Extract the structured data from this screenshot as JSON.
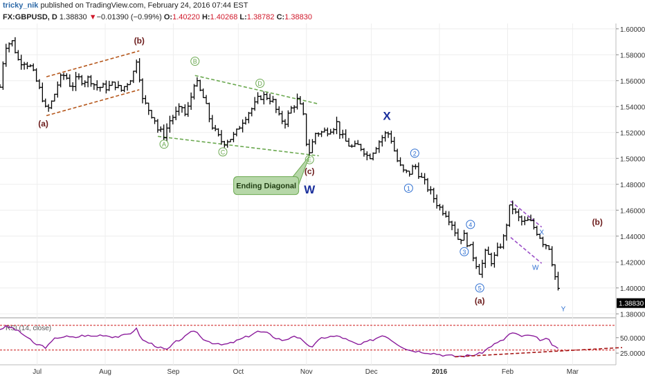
{
  "header": {
    "author": "tricky_nik",
    "published": "published on TradingView.com, February 24, 2016 07:44 EST",
    "symbol": "FX:GBPUSD, D",
    "price": "1.38830",
    "change_arrow": "▼",
    "change": "−0.01390 (−0.99%)",
    "open_label": "O:",
    "open": "1.40220",
    "high_label": "H:",
    "high": "1.40268",
    "low_label": "L:",
    "low": "1.38782",
    "close_label": "C:",
    "close": "1.38830"
  },
  "chart_data": {
    "type": "ohlc",
    "symbol": "FX:GBPUSD",
    "timeframe": "D",
    "y_ticks": [
      "1.60000",
      "1.58000",
      "1.56000",
      "1.54000",
      "1.52000",
      "1.50000",
      "1.48000",
      "1.46000",
      "1.44000",
      "1.42000",
      "1.40000",
      "1.38000"
    ],
    "ylim": [
      1.378,
      1.602
    ],
    "x_ticks": [
      {
        "label": "Jul",
        "x": 1
      },
      {
        "label": "Aug",
        "x": 23
      },
      {
        "label": "Sep",
        "x": 45
      },
      {
        "label": "Oct",
        "x": 66
      },
      {
        "label": "Nov",
        "x": 88
      },
      {
        "label": "Dec",
        "x": 109
      },
      {
        "label": "2016",
        "x": 131,
        "bold": true
      },
      {
        "label": "Feb",
        "x": 153
      },
      {
        "label": "Mar",
        "x": 174
      }
    ],
    "x_range": [
      -11,
      188
    ],
    "last_price": "1.38830",
    "close_waypoints": [
      [
        -11,
        1.555
      ],
      [
        -10,
        1.575
      ],
      [
        -9,
        1.588
      ],
      [
        -7,
        1.59
      ],
      [
        -5,
        1.575
      ],
      [
        -3,
        1.575
      ],
      [
        -1,
        1.57
      ],
      [
        1,
        1.558
      ],
      [
        3,
        1.545
      ],
      [
        4,
        1.535
      ],
      [
        6,
        1.545
      ],
      [
        8,
        1.56
      ],
      [
        10,
        1.565
      ],
      [
        12,
        1.555
      ],
      [
        14,
        1.562
      ],
      [
        16,
        1.56
      ],
      [
        18,
        1.562
      ],
      [
        20,
        1.555
      ],
      [
        22,
        1.555
      ],
      [
        24,
        1.555
      ],
      [
        26,
        1.558
      ],
      [
        28,
        1.552
      ],
      [
        30,
        1.558
      ],
      [
        32,
        1.565
      ],
      [
        33,
        1.578
      ],
      [
        34,
        1.565
      ],
      [
        35,
        1.545
      ],
      [
        37,
        1.538
      ],
      [
        39,
        1.53
      ],
      [
        40,
        1.522
      ],
      [
        42,
        1.518
      ],
      [
        44,
        1.53
      ],
      [
        46,
        1.535
      ],
      [
        48,
        1.54
      ],
      [
        49,
        1.532
      ],
      [
        51,
        1.55
      ],
      [
        52,
        1.562
      ],
      [
        53,
        1.555
      ],
      [
        55,
        1.545
      ],
      [
        57,
        1.528
      ],
      [
        59,
        1.518
      ],
      [
        61,
        1.512
      ],
      [
        63,
        1.515
      ],
      [
        65,
        1.518
      ],
      [
        67,
        1.528
      ],
      [
        69,
        1.535
      ],
      [
        71,
        1.54
      ],
      [
        73,
        1.548
      ],
      [
        75,
        1.548
      ],
      [
        77,
        1.545
      ],
      [
        79,
        1.532
      ],
      [
        81,
        1.528
      ],
      [
        83,
        1.538
      ],
      [
        85,
        1.545
      ],
      [
        86,
        1.54
      ],
      [
        87,
        1.532
      ],
      [
        88,
        1.512
      ],
      [
        89,
        1.505
      ],
      [
        91,
        1.52
      ],
      [
        93,
        1.52
      ],
      [
        95,
        1.522
      ],
      [
        97,
        1.525
      ],
      [
        98,
        1.528
      ],
      [
        99,
        1.518
      ],
      [
        101,
        1.512
      ],
      [
        103,
        1.508
      ],
      [
        105,
        1.51
      ],
      [
        107,
        1.505
      ],
      [
        108,
        1.5
      ],
      [
        110,
        1.508
      ],
      [
        112,
        1.515
      ],
      [
        114,
        1.52
      ],
      [
        115,
        1.518
      ],
      [
        116,
        1.51
      ],
      [
        117,
        1.5
      ],
      [
        119,
        1.49
      ],
      [
        121,
        1.488
      ],
      [
        123,
        1.495
      ],
      [
        125,
        1.485
      ],
      [
        127,
        1.478
      ],
      [
        129,
        1.47
      ],
      [
        131,
        1.462
      ],
      [
        133,
        1.458
      ],
      [
        135,
        1.45
      ],
      [
        137,
        1.438
      ],
      [
        139,
        1.44
      ],
      [
        141,
        1.43
      ],
      [
        143,
        1.418
      ],
      [
        144,
        1.412
      ],
      [
        146,
        1.428
      ],
      [
        148,
        1.42
      ],
      [
        150,
        1.43
      ],
      [
        152,
        1.44
      ],
      [
        153,
        1.455
      ],
      [
        154,
        1.465
      ],
      [
        156,
        1.455
      ],
      [
        158,
        1.45
      ],
      [
        160,
        1.452
      ],
      [
        162,
        1.445
      ],
      [
        164,
        1.438
      ],
      [
        165,
        1.432
      ],
      [
        166,
        1.436
      ],
      [
        167,
        1.425
      ],
      [
        168,
        1.412
      ],
      [
        169,
        1.402
      ],
      [
        170,
        1.3883
      ]
    ],
    "trendlines": [
      {
        "color": "#b5561a",
        "points": [
          [
            4,
            1.563
          ],
          [
            34,
            1.583
          ]
        ]
      },
      {
        "color": "#b5561a",
        "points": [
          [
            4,
            1.533
          ],
          [
            34,
            1.553
          ]
        ]
      },
      {
        "color": "#6aa84f",
        "points": [
          [
            52,
            1.564
          ],
          [
            92,
            1.542
          ]
        ]
      },
      {
        "color": "#6aa84f",
        "points": [
          [
            40,
            1.517
          ],
          [
            92,
            1.502
          ]
        ]
      },
      {
        "color": "#9b4fc8",
        "points": [
          [
            154,
            1.467
          ],
          [
            164,
            1.447
          ]
        ]
      },
      {
        "color": "#9b4fc8",
        "points": [
          [
            154,
            1.439
          ],
          [
            164,
            1.419
          ]
        ]
      }
    ],
    "wave_labels": [
      {
        "text": "(a)",
        "x": 3,
        "y": 1.527,
        "color": "#6b1a1a",
        "style": "bold"
      },
      {
        "text": "(b)",
        "x": 34,
        "y": 1.591,
        "color": "#6b1a1a",
        "style": "bold"
      },
      {
        "text": "A",
        "x": 42,
        "y": 1.511,
        "color": "#6aa84f",
        "style": "circle"
      },
      {
        "text": "B",
        "x": 52,
        "y": 1.575,
        "color": "#6aa84f",
        "style": "circle"
      },
      {
        "text": "C",
        "x": 61,
        "y": 1.505,
        "color": "#6aa84f",
        "style": "circle"
      },
      {
        "text": "D",
        "x": 73,
        "y": 1.558,
        "color": "#6aa84f",
        "style": "circle"
      },
      {
        "text": "E",
        "x": 89,
        "y": 1.499,
        "color": "#6aa84f",
        "style": "circle"
      },
      {
        "text": "(c)",
        "x": 89,
        "y": 1.49,
        "color": "#6b1a1a",
        "style": "bold"
      },
      {
        "text": "W",
        "x": 89,
        "y": 1.476,
        "color": "#1a2f9c",
        "style": "big"
      },
      {
        "text": "X",
        "x": 114,
        "y": 1.533,
        "color": "#1a2f9c",
        "style": "big"
      },
      {
        "text": "1",
        "x": 121,
        "y": 1.477,
        "color": "#2e6fd1",
        "style": "circle"
      },
      {
        "text": "2",
        "x": 123,
        "y": 1.504,
        "color": "#2e6fd1",
        "style": "circle"
      },
      {
        "text": "3",
        "x": 139,
        "y": 1.428,
        "color": "#2e6fd1",
        "style": "circle"
      },
      {
        "text": "4",
        "x": 141,
        "y": 1.449,
        "color": "#2e6fd1",
        "style": "circle"
      },
      {
        "text": "5",
        "x": 144,
        "y": 1.4,
        "color": "#2e6fd1",
        "style": "circle"
      },
      {
        "text": "(a)",
        "x": 144,
        "y": 1.39,
        "color": "#6b1a1a",
        "style": "bold"
      },
      {
        "text": "X",
        "x": 164,
        "y": 1.443,
        "color": "#2e6fd1",
        "style": "small"
      },
      {
        "text": "W",
        "x": 162,
        "y": 1.416,
        "color": "#2e6fd1",
        "style": "small"
      },
      {
        "text": "Y",
        "x": 171,
        "y": 1.384,
        "color": "#2e6fd1",
        "style": "small"
      },
      {
        "text": "(b)",
        "x": 182,
        "y": 1.451,
        "color": "#6b1a1a",
        "style": "bold"
      }
    ],
    "callout": {
      "text": "Ending Diagonal",
      "target": {
        "x": 89,
        "y": 1.502
      },
      "anchor": {
        "x": 75,
        "y": 1.479
      }
    }
  },
  "rsi": {
    "label": "RSI (14, close)",
    "ticks": [
      "50.0000",
      "25.0000"
    ],
    "ylim": [
      15,
      80
    ],
    "levels": [
      70,
      30
    ],
    "waypoints": [
      [
        -11,
        64
      ],
      [
        -9,
        68
      ],
      [
        -7,
        66
      ],
      [
        -4,
        57
      ],
      [
        -2,
        50
      ],
      [
        0,
        40
      ],
      [
        2,
        38
      ],
      [
        4,
        34
      ],
      [
        7,
        50
      ],
      [
        10,
        52
      ],
      [
        13,
        50
      ],
      [
        16,
        54
      ],
      [
        19,
        52
      ],
      [
        22,
        55
      ],
      [
        25,
        52
      ],
      [
        28,
        52
      ],
      [
        31,
        57
      ],
      [
        33,
        65
      ],
      [
        35,
        46
      ],
      [
        38,
        40
      ],
      [
        41,
        33
      ],
      [
        43,
        30
      ],
      [
        46,
        44
      ],
      [
        49,
        52
      ],
      [
        52,
        63
      ],
      [
        54,
        50
      ],
      [
        57,
        43
      ],
      [
        60,
        38
      ],
      [
        63,
        40
      ],
      [
        66,
        46
      ],
      [
        69,
        52
      ],
      [
        72,
        60
      ],
      [
        75,
        58
      ],
      [
        78,
        50
      ],
      [
        81,
        45
      ],
      [
        84,
        54
      ],
      [
        86,
        48
      ],
      [
        88,
        38
      ],
      [
        90,
        36
      ],
      [
        93,
        50
      ],
      [
        96,
        52
      ],
      [
        99,
        52
      ],
      [
        102,
        44
      ],
      [
        105,
        38
      ],
      [
        108,
        44
      ],
      [
        110,
        48
      ],
      [
        113,
        55
      ],
      [
        115,
        48
      ],
      [
        118,
        38
      ],
      [
        121,
        30
      ],
      [
        124,
        28
      ],
      [
        127,
        26
      ],
      [
        130,
        24
      ],
      [
        132,
        22
      ],
      [
        134,
        21
      ],
      [
        136,
        20
      ],
      [
        138,
        20
      ],
      [
        140,
        21
      ],
      [
        142,
        22
      ],
      [
        144,
        24
      ],
      [
        146,
        30
      ],
      [
        148,
        38
      ],
      [
        150,
        42
      ],
      [
        152,
        48
      ],
      [
        154,
        58
      ],
      [
        156,
        55
      ],
      [
        158,
        52
      ],
      [
        160,
        54
      ],
      [
        162,
        50
      ],
      [
        164,
        46
      ],
      [
        166,
        48
      ],
      [
        168,
        35
      ],
      [
        170,
        30
      ]
    ],
    "trendline": {
      "color": "#a51414",
      "points": [
        [
          136,
          19
        ],
        [
          190,
          34
        ]
      ]
    }
  },
  "colors": {
    "bars": "#000000",
    "rsi_line": "#8a1a9b",
    "level_line": "#cc1414",
    "grid": "#eeeeee",
    "axis_text": "#333333",
    "last_price_bg": "#000000",
    "callout_fill": "#b6d7a8",
    "callout_border": "#6aa84f"
  }
}
